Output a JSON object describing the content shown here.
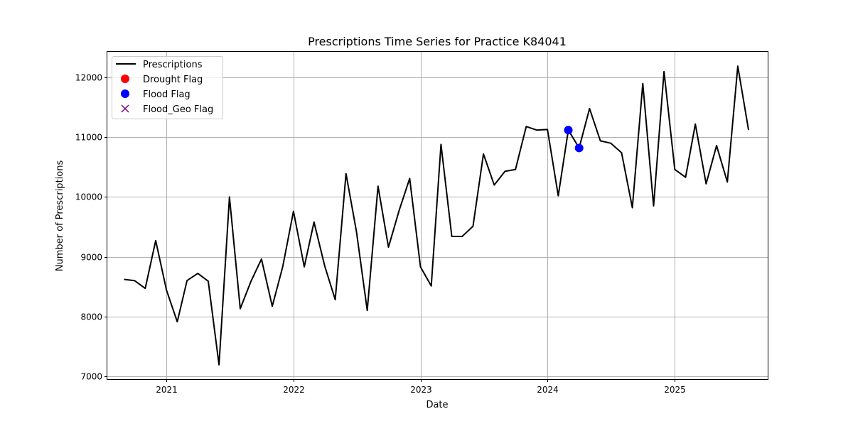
{
  "chart_data": {
    "type": "line",
    "title": "Prescriptions Time Series for Practice K84041",
    "xlabel": "Date",
    "ylabel": "Number of Prescriptions",
    "xlim": [
      "2020-07-15",
      "2025-09-25"
    ],
    "ylim": [
      6950,
      12430
    ],
    "x_ticks": [
      "2021-01-01",
      "2022-01-01",
      "2023-01-01",
      "2024-01-01",
      "2025-01-01"
    ],
    "x_tick_labels": [
      "2021",
      "2022",
      "2023",
      "2024",
      "2025"
    ],
    "y_ticks": [
      7000,
      8000,
      9000,
      10000,
      11000,
      12000
    ],
    "y_tick_labels": [
      "7000",
      "8000",
      "9000",
      "10000",
      "11000",
      "12000"
    ],
    "grid": true,
    "legend_position": "top-left",
    "series": [
      {
        "name": "Prescriptions",
        "style": "line",
        "color": "#000000",
        "points": [
          [
            "2020-09-01",
            8620
          ],
          [
            "2020-10-01",
            8600
          ],
          [
            "2020-11-01",
            8470
          ],
          [
            "2020-12-01",
            9270
          ],
          [
            "2021-01-01",
            8440
          ],
          [
            "2021-02-01",
            7910
          ],
          [
            "2021-03-01",
            8600
          ],
          [
            "2021-04-01",
            8720
          ],
          [
            "2021-05-01",
            8590
          ],
          [
            "2021-06-01",
            7190
          ],
          [
            "2021-07-01",
            10000
          ],
          [
            "2021-08-01",
            8130
          ],
          [
            "2021-09-01",
            8590
          ],
          [
            "2021-10-01",
            8960
          ],
          [
            "2021-11-01",
            8170
          ],
          [
            "2021-12-01",
            8830
          ],
          [
            "2022-01-01",
            9760
          ],
          [
            "2022-02-01",
            8830
          ],
          [
            "2022-03-01",
            9580
          ],
          [
            "2022-04-01",
            8840
          ],
          [
            "2022-05-01",
            8280
          ],
          [
            "2022-06-01",
            10390
          ],
          [
            "2022-07-01",
            9420
          ],
          [
            "2022-08-01",
            8100
          ],
          [
            "2022-09-01",
            10180
          ],
          [
            "2022-10-01",
            9160
          ],
          [
            "2022-11-01",
            9780
          ],
          [
            "2022-12-01",
            10310
          ],
          [
            "2023-01-01",
            8830
          ],
          [
            "2023-02-01",
            8510
          ],
          [
            "2023-03-01",
            10880
          ],
          [
            "2023-04-01",
            9340
          ],
          [
            "2023-05-01",
            9340
          ],
          [
            "2023-06-01",
            9510
          ],
          [
            "2023-07-01",
            10720
          ],
          [
            "2023-08-01",
            10200
          ],
          [
            "2023-09-01",
            10430
          ],
          [
            "2023-10-01",
            10460
          ],
          [
            "2023-11-01",
            11180
          ],
          [
            "2023-12-01",
            11120
          ],
          [
            "2024-01-01",
            11130
          ],
          [
            "2024-02-01",
            10020
          ],
          [
            "2024-03-01",
            11120
          ],
          [
            "2024-04-01",
            10820
          ],
          [
            "2024-05-01",
            11480
          ],
          [
            "2024-06-01",
            10940
          ],
          [
            "2024-07-01",
            10900
          ],
          [
            "2024-08-01",
            10740
          ],
          [
            "2024-09-01",
            9820
          ],
          [
            "2024-10-01",
            11900
          ],
          [
            "2024-11-01",
            9850
          ],
          [
            "2024-12-01",
            12100
          ],
          [
            "2025-01-01",
            10460
          ],
          [
            "2025-02-01",
            10330
          ],
          [
            "2025-03-01",
            11220
          ],
          [
            "2025-04-01",
            10220
          ],
          [
            "2025-05-01",
            10860
          ],
          [
            "2025-06-01",
            10250
          ],
          [
            "2025-07-01",
            12190
          ],
          [
            "2025-08-01",
            11120
          ]
        ]
      },
      {
        "name": "Drought Flag",
        "style": "scatter",
        "marker": "circle",
        "color": "#ff0000",
        "points": []
      },
      {
        "name": "Flood Flag",
        "style": "scatter",
        "marker": "circle",
        "color": "#0000ff",
        "points": [
          [
            "2024-03-01",
            11120
          ],
          [
            "2024-04-01",
            10820
          ]
        ]
      },
      {
        "name": "Flood_Geo Flag",
        "style": "scatter",
        "marker": "x",
        "color": "#800080",
        "points": []
      }
    ]
  }
}
